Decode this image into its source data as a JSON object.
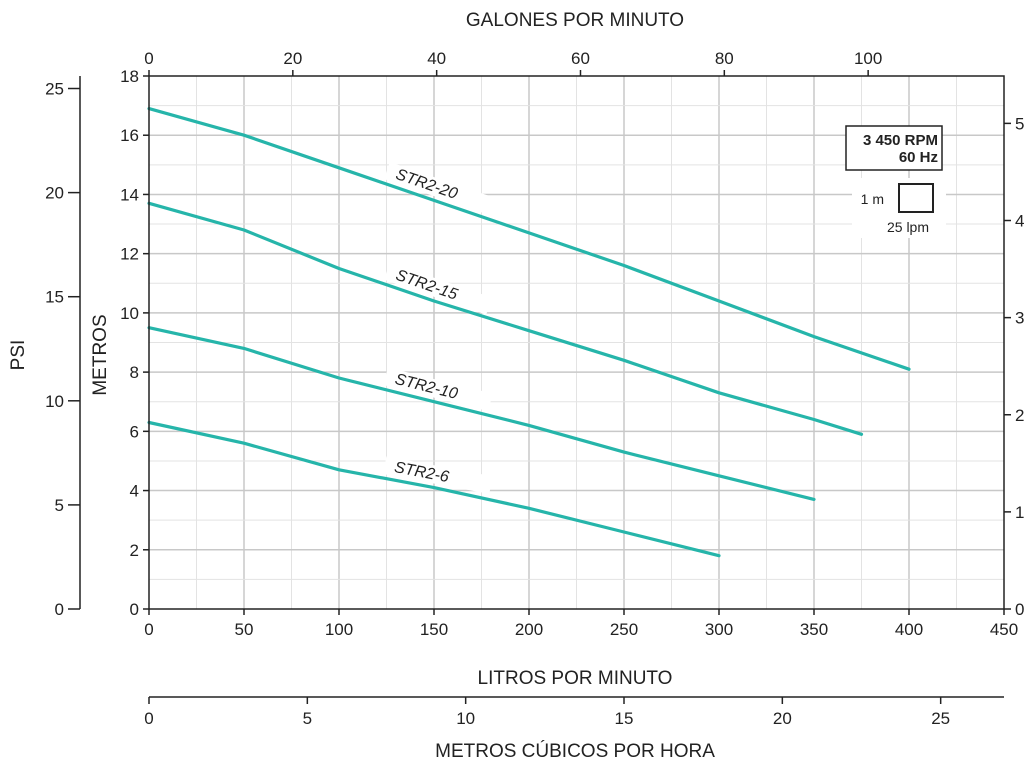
{
  "chart_data": {
    "type": "line",
    "title": "",
    "axes": {
      "x_bottom": {
        "label": "LITROS POR MINUTO",
        "range": [
          0,
          450
        ],
        "ticks": [
          0,
          50,
          100,
          150,
          200,
          250,
          300,
          350,
          400,
          450
        ]
      },
      "x_top": {
        "label": "GALONES POR MINUTO",
        "range": [
          0,
          118.9
        ],
        "ticks": [
          0,
          20,
          40,
          60,
          80,
          100
        ]
      },
      "x_bottom2": {
        "label": "METROS CÚBICOS POR HORA",
        "range": [
          0,
          27
        ],
        "ticks": [
          0,
          5,
          10,
          15,
          20,
          25
        ]
      },
      "y_left": {
        "label": "METROS",
        "range": [
          0,
          18
        ],
        "ticks": [
          0,
          2,
          4,
          6,
          8,
          10,
          12,
          14,
          16,
          18
        ]
      },
      "y_left2": {
        "label": "PSI",
        "range": [
          0,
          25.6
        ],
        "ticks": [
          0,
          5,
          10,
          15,
          20,
          25
        ]
      },
      "y_right": {
        "label": "",
        "range": [
          0,
          5.49
        ],
        "ticks": [
          0,
          1,
          2,
          3,
          4,
          5
        ]
      }
    },
    "grid": true,
    "series": [
      {
        "name": "STR2-20",
        "x": [
          0,
          50,
          100,
          150,
          200,
          250,
          300,
          350,
          400
        ],
        "y": [
          16.9,
          16.0,
          14.9,
          13.8,
          12.7,
          11.6,
          10.4,
          9.2,
          8.1
        ]
      },
      {
        "name": "STR2-15",
        "x": [
          0,
          50,
          100,
          150,
          200,
          250,
          300,
          350,
          375
        ],
        "y": [
          13.7,
          12.8,
          11.5,
          10.4,
          9.4,
          8.4,
          7.3,
          6.4,
          5.9
        ]
      },
      {
        "name": "STR2-10",
        "x": [
          0,
          50,
          100,
          150,
          200,
          250,
          300,
          350
        ],
        "y": [
          9.5,
          8.8,
          7.8,
          7.0,
          6.2,
          5.3,
          4.5,
          3.7
        ]
      },
      {
        "name": "STR2-6",
        "x": [
          0,
          50,
          100,
          150,
          200,
          250,
          300
        ],
        "y": [
          6.3,
          5.6,
          4.7,
          4.1,
          3.4,
          2.6,
          1.8
        ]
      }
    ],
    "annotations": {
      "rpm": "3 450 RPM",
      "hz": "60 Hz",
      "scale_height": "1 m",
      "scale_width": "25 lpm"
    },
    "colors": {
      "curve": "#26b5aa",
      "grid_major": "#c8c8c8",
      "grid_minor": "#e3e3e3",
      "axis": "#222222"
    }
  }
}
